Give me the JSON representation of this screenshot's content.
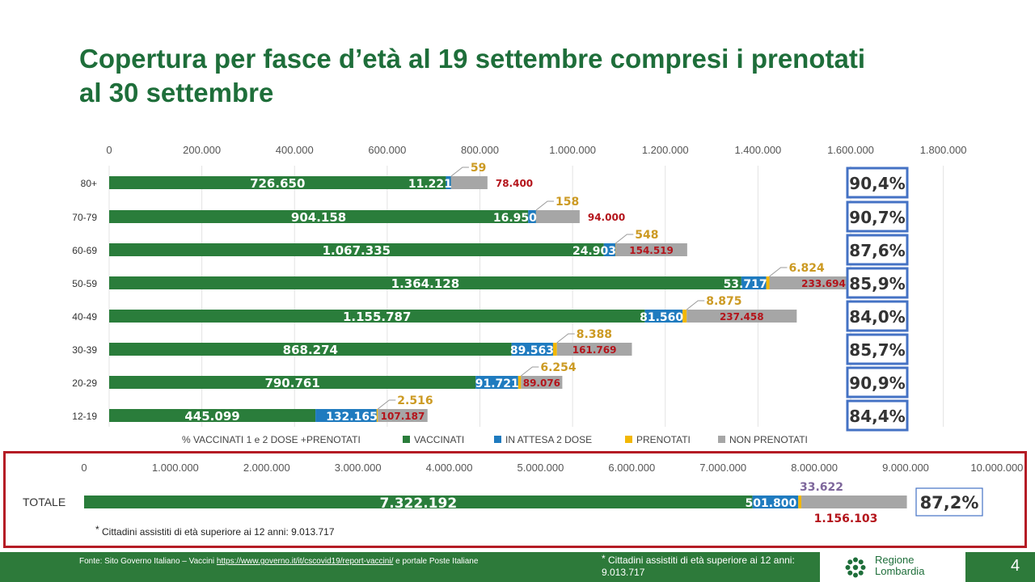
{
  "title": {
    "line1": "Copertura per fasce d’età al 19 settembre compresi i prenotati",
    "line2": "al 30 settembre"
  },
  "colors": {
    "vaccinati": "#2a7d3b",
    "in_attesa": "#1f7bbf",
    "prenotati": "#f2b705",
    "non_prenotati": "#a6a6a6",
    "title_green": "#1e6e3a",
    "pct_border": "#4472c4",
    "total_border": "#b51c25",
    "prenotati_label": "#cc9a23",
    "non_prenotati_label": "#b4141b",
    "total_prenotati_label": "#7e679c"
  },
  "chart_data": [
    {
      "type": "bar",
      "orientation": "horizontal",
      "stacked": true,
      "categories": [
        "80+",
        "70-79",
        "60-69",
        "50-59",
        "40-49",
        "30-39",
        "20-29",
        "12-19"
      ],
      "series": [
        {
          "name": "VACCINATI",
          "values": [
            726650,
            904158,
            1067335,
            1364128,
            1155787,
            868274,
            790761,
            445099
          ]
        },
        {
          "name": "IN ATTESA 2 DOSE",
          "values": [
            11221,
            16950,
            24903,
            53717,
            81560,
            89563,
            91721,
            132165
          ]
        },
        {
          "name": "PRENOTATI",
          "values": [
            59,
            158,
            548,
            6824,
            8875,
            8388,
            6254,
            2516
          ]
        },
        {
          "name": "NON PRENOTATI",
          "values": [
            78400,
            94000,
            154519,
            233694,
            237458,
            161769,
            89076,
            107187
          ]
        }
      ],
      "value_labels": {
        "vaccinati": [
          "726.650",
          "904.158",
          "1.067.335",
          "1.364.128",
          "1.155.787",
          "868.274",
          "790.761",
          "445.099"
        ],
        "in_attesa": [
          "11.221",
          "16.950",
          "24.903",
          "53.717",
          "81.560",
          "89.563",
          "91.721",
          "132.165"
        ],
        "prenotati": [
          "59",
          "158",
          "548",
          "6.824",
          "8.875",
          "8.388",
          "6.254",
          "2.516"
        ],
        "non_prenotati": [
          "78.400",
          "94.000",
          "154.519",
          "233.694",
          "237.458",
          "161.769",
          "89.076",
          "107.187"
        ]
      },
      "percentages": [
        "90,4%",
        "90,7%",
        "87,6%",
        "85,9%",
        "84,0%",
        "85,7%",
        "90,9%",
        "84,4%"
      ],
      "xlim": [
        0,
        1800000
      ],
      "ticks": [
        "0",
        "200.000",
        "400.000",
        "600.000",
        "800.000",
        "1.000.000",
        "1.200.000",
        "1.400.000",
        "1.600.000",
        "1.800.000"
      ],
      "tick_values": [
        0,
        200000,
        400000,
        600000,
        800000,
        1000000,
        1200000,
        1400000,
        1600000,
        1800000
      ],
      "legend": [
        "% VACCINATI 1 e 2 DOSE +PRENOTATI",
        "VACCINATI",
        "IN ATTESA 2 DOSE",
        "PRENOTATI",
        "NON PRENOTATI"
      ],
      "legend_position": "bottom",
      "axis_position": "top",
      "grid": true
    },
    {
      "type": "bar",
      "orientation": "horizontal",
      "stacked": true,
      "categories": [
        "TOTALE"
      ],
      "series": [
        {
          "name": "VACCINATI",
          "values": [
            7322192
          ]
        },
        {
          "name": "IN ATTESA 2 DOSE",
          "values": [
            501800
          ]
        },
        {
          "name": "PRENOTATI",
          "values": [
            33622
          ]
        },
        {
          "name": "NON PRENOTATI",
          "values": [
            1156103
          ]
        }
      ],
      "value_labels": {
        "vaccinati": [
          "7.322.192"
        ],
        "in_attesa": [
          "501.800"
        ],
        "prenotati": [
          "33.622"
        ],
        "non_prenotati": [
          "1.156.103"
        ]
      },
      "percentages": [
        "87,2%"
      ],
      "xlim": [
        0,
        10000000
      ],
      "ticks": [
        "0",
        "1.000.000",
        "2.000.000",
        "3.000.000",
        "4.000.000",
        "5.000.000",
        "6.000.000",
        "7.000.000",
        "8.000.000",
        "9.000.000",
        "10.000.000"
      ],
      "tick_values": [
        0,
        1000000,
        2000000,
        3000000,
        4000000,
        5000000,
        6000000,
        7000000,
        8000000,
        9000000,
        10000000
      ],
      "axis_position": "top",
      "grid": false
    }
  ],
  "total_note": {
    "star": "*",
    "text": "Cittadini  assistiti di età superiore ai 12 anni: 9.013.717"
  },
  "footer": {
    "source_prefix": "Fonte: Sito Governo Italiano – Vaccini ",
    "source_link": "https://www.governo.it/it/cscovid19/report-vaccini/",
    "source_suffix": "  e portale Poste Italiane",
    "note_star": "*",
    "note_text": " Cittadini  assistiti di età superiore ai 12 anni: 9.013.717",
    "logo_line1": "Regione",
    "logo_line2": "Lombardia",
    "page_number": "4"
  }
}
